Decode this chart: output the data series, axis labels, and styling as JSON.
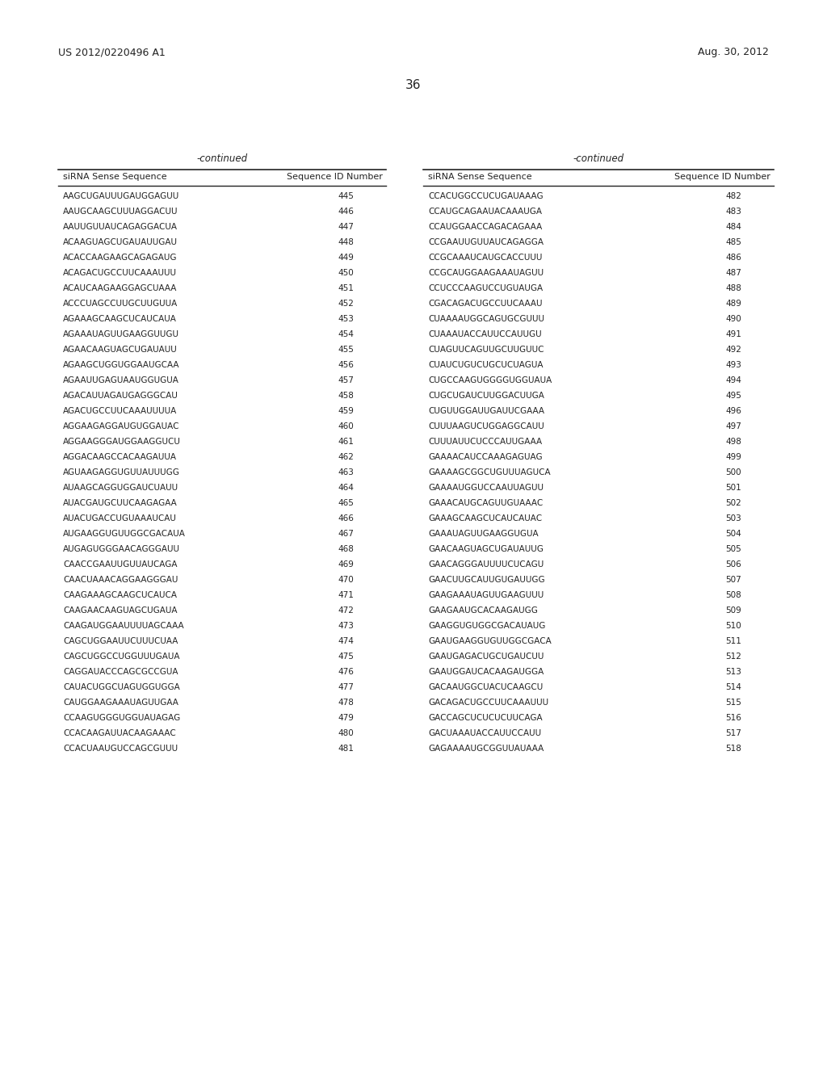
{
  "page_left": "US 2012/0220496 A1",
  "page_right": "Aug. 30, 2012",
  "page_number": "36",
  "background_color": "#ffffff",
  "text_color": "#1a1a1a",
  "continued_label": "-continued",
  "col_header1": "siRNA Sense Sequence",
  "col_header2": "Sequence ID Number",
  "left_sequences": [
    [
      "AAGCUGAUUUGAUGGAGUU",
      "445"
    ],
    [
      "AAUGCAAGCUUUAGGACUU",
      "446"
    ],
    [
      "AAUUGUUAUCAGAGGACUA",
      "447"
    ],
    [
      "ACAAGUAGCUGAUAUUGAU",
      "448"
    ],
    [
      "ACACCAAGAAGCAGAGAUG",
      "449"
    ],
    [
      "ACAGACUGCCUUCAAAUUU",
      "450"
    ],
    [
      "ACAUCAAGAAGGAGCUAAA",
      "451"
    ],
    [
      "ACCCUAGCCUUGCUUGUUA",
      "452"
    ],
    [
      "AGAAAGCAAGCUCAUCAUA",
      "453"
    ],
    [
      "AGAAAUAGUUGAAGGUUGU",
      "454"
    ],
    [
      "AGAACAAGUAGCUGAUAUU",
      "455"
    ],
    [
      "AGAAGCUGGUGGAAUGCAA",
      "456"
    ],
    [
      "AGAAUUGAGUAAUGGUGUA",
      "457"
    ],
    [
      "AGACAUUAGAUGAGGGCAU",
      "458"
    ],
    [
      "AGACUGCCUUCAAAUUUUA",
      "459"
    ],
    [
      "AGGAAGAGGAUGUGGAUAC",
      "460"
    ],
    [
      "AGGAAGGGAUGGAAGGUCU",
      "461"
    ],
    [
      "AGGACAAGCCACAAGAUUA",
      "462"
    ],
    [
      "AGUAAGAGGUGUUAUUUGG",
      "463"
    ],
    [
      "AUAAGCAGGUGGAUCUAUU",
      "464"
    ],
    [
      "AUACGAUGCUUCAAGAGAA",
      "465"
    ],
    [
      "AUACUGACCUGUAAAUCAU",
      "466"
    ],
    [
      "AUGAAGGUGUUGGCGACAUA",
      "467"
    ],
    [
      "AUGAGUGGGAACAGGGAUU",
      "468"
    ],
    [
      "CAACCGAAUUGUUAUCAGA",
      "469"
    ],
    [
      "CAACUAAACAGGAAGGGAU",
      "470"
    ],
    [
      "CAAGAAAGCAAGCUCAUCA",
      "471"
    ],
    [
      "CAAGAACAAGUAGCUGAUA",
      "472"
    ],
    [
      "CAAGAUGGAAUUUUAGCAAA",
      "473"
    ],
    [
      "CAGCUGGAAUUCUUUCUAA",
      "474"
    ],
    [
      "CAGCUGGCCUGGUUUGAUA",
      "475"
    ],
    [
      "CAGGAUACCCAGCGCCGUA",
      "476"
    ],
    [
      "CAUACUGGCUAGUGGUGGA",
      "477"
    ],
    [
      "CAUGGAAGAAAUAGUUGAA",
      "478"
    ],
    [
      "CCAAGUGGGUGGUAUAGAG",
      "479"
    ],
    [
      "CCACAAGAUUACAAGAAAC",
      "480"
    ],
    [
      "CCACUAAUGUCCAGCGUUU",
      "481"
    ]
  ],
  "right_sequences": [
    [
      "CCACUGGCCUCUGAUAAAG",
      "482"
    ],
    [
      "CCAUGCAGAAUACAAAUGA",
      "483"
    ],
    [
      "CCAUGGAACCAGACAGAAA",
      "484"
    ],
    [
      "CCGAAUUGUUAUCAGAGGA",
      "485"
    ],
    [
      "CCGCAAAUCAUGCACCUUU",
      "486"
    ],
    [
      "CCGCAUGGAAGAAAUAGUU",
      "487"
    ],
    [
      "CCUCCCAAGUCCUGUAUGA",
      "488"
    ],
    [
      "CGACAGACUGCCUUCAAAU",
      "489"
    ],
    [
      "CUAAAAUGGCAGUGCGUUU",
      "490"
    ],
    [
      "CUAAAUACCAUUCCAUUGU",
      "491"
    ],
    [
      "CUAGUUCAGUUGCUUGUUC",
      "492"
    ],
    [
      "CUAUCUGUCUGCUCUAGUA",
      "493"
    ],
    [
      "CUGCCAAGUGGGGUGGUAUA",
      "494"
    ],
    [
      "CUGCUGAUCUUGGACUUGA",
      "495"
    ],
    [
      "CUGUUGGAUUGAUUCGAAA",
      "496"
    ],
    [
      "CUUUAAGUCUGGAGGCAUU",
      "497"
    ],
    [
      "CUUUAUUCUCCCAUUGAAA",
      "498"
    ],
    [
      "GAAAACAUCCAAAGAGUAG",
      "499"
    ],
    [
      "GAAAAGCGGCUGUUUAGUCA",
      "500"
    ],
    [
      "GAAAAUGGUCCAAUUAGUU",
      "501"
    ],
    [
      "GAAACAUGCAGUUGUAAAC",
      "502"
    ],
    [
      "GAAAGCAAGCUCAUCAUAC",
      "503"
    ],
    [
      "GAAAUAGUUGAAGGUGUA",
      "504"
    ],
    [
      "GAACAAGUAGCUGAUAUUG",
      "505"
    ],
    [
      "GAACAGGGAUUUUCUCAGU",
      "506"
    ],
    [
      "GAACUUGCAUUGUGAUUGG",
      "507"
    ],
    [
      "GAAGAAAUAGUUGAAGUUU",
      "508"
    ],
    [
      "GAAGAAUGCACAAGAUGG",
      "509"
    ],
    [
      "GAAGGUGUGGCGACAUAUG",
      "510"
    ],
    [
      "GAAUGAAGGUGUUGGCGACA",
      "511"
    ],
    [
      "GAAUGAGACUGCUGAUCUU",
      "512"
    ],
    [
      "GAAUGGAUCACAAGAUGGA",
      "513"
    ],
    [
      "GACAAUGGCUACUCAAGCU",
      "514"
    ],
    [
      "GACAGACUGCCUUCAAAUUU",
      "515"
    ],
    [
      "GACCAGCUCUCUCUUCAGA",
      "516"
    ],
    [
      "GACUAAAUACCAUUCCAUU",
      "517"
    ],
    [
      "GAGAAAAUGCGGUUAUAAA",
      "518"
    ]
  ]
}
